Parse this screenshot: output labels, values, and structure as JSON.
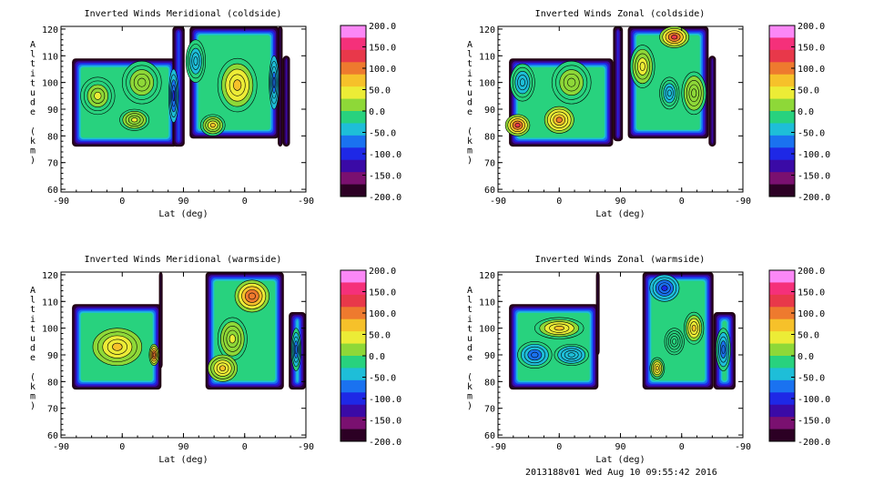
{
  "footer_text": "2013188v01 Wed Aug 10 09:55:42 2016",
  "colorbar": {
    "ticks": [
      "200.0",
      "150.0",
      "100.0",
      "50.0",
      "0.0",
      "-50.0",
      "-100.0",
      "-150.0",
      "-200.0"
    ],
    "colors": [
      "#fb88f6",
      "#f5307a",
      "#e8384a",
      "#ee7a2e",
      "#f6c12a",
      "#ecec36",
      "#8ed838",
      "#28d27e",
      "#1ebed8",
      "#1a72f0",
      "#1e28e6",
      "#3a0aa6",
      "#7a1070",
      "#2c0024"
    ]
  },
  "chart_data": [
    {
      "type": "heatmap",
      "title": "Inverted Winds Meridional (coldside)",
      "xlabel": "Lat (deg)",
      "ylabel": "Altitude (km)",
      "xticks": [
        "-90",
        "0",
        "90",
        "0",
        "-90"
      ],
      "yticks": [
        "60",
        "70",
        "80",
        "90",
        "100",
        "110",
        "120"
      ],
      "ylim": [
        59,
        121
      ],
      "zlim": [
        -200,
        200
      ],
      "blocks": [
        {
          "x0": 0.045,
          "x1": 0.475,
          "y0": 76,
          "y1": 109
        },
        {
          "x0": 0.455,
          "x1": 0.505,
          "y0": 76,
          "y1": 121
        },
        {
          "x0": 0.525,
          "x1": 0.89,
          "y0": 79,
          "y1": 121
        },
        {
          "x0": 0.885,
          "x1": 0.905,
          "y0": 76,
          "y1": 121
        },
        {
          "x0": 0.905,
          "x1": 0.935,
          "y0": 76,
          "y1": 110
        }
      ],
      "blobs": [
        {
          "x": 0.15,
          "y": 95,
          "sx": 0.07,
          "sy": 7,
          "v": 30
        },
        {
          "x": 0.33,
          "y": 100,
          "sx": 0.08,
          "sy": 8,
          "v": 25
        },
        {
          "x": 0.3,
          "y": 86,
          "sx": 0.06,
          "sy": 4,
          "v": 40
        },
        {
          "x": 0.72,
          "y": 99,
          "sx": 0.08,
          "sy": 10,
          "v": 70
        },
        {
          "x": 0.62,
          "y": 84,
          "sx": 0.05,
          "sy": 4,
          "v": 60
        },
        {
          "x": 0.55,
          "y": 108,
          "sx": 0.04,
          "sy": 8,
          "v": -40
        },
        {
          "x": 0.46,
          "y": 95,
          "sx": 0.02,
          "sy": 10,
          "v": -90
        },
        {
          "x": 0.87,
          "y": 100,
          "sx": 0.02,
          "sy": 10,
          "v": -80
        }
      ],
      "base_value": -20
    },
    {
      "type": "heatmap",
      "title": "Inverted Winds Zonal (coldside)",
      "xlabel": "Lat (deg)",
      "ylabel": "Altitude (km)",
      "xticks": [
        "-90",
        "0",
        "90",
        "0",
        "-90"
      ],
      "yticks": [
        "60",
        "70",
        "80",
        "90",
        "100",
        "110",
        "120"
      ],
      "ylim": [
        59,
        121
      ],
      "zlim": [
        -200,
        200
      ],
      "blocks": [
        {
          "x0": 0.045,
          "x1": 0.47,
          "y0": 76,
          "y1": 109
        },
        {
          "x0": 0.47,
          "x1": 0.51,
          "y0": 78,
          "y1": 121
        },
        {
          "x0": 0.53,
          "x1": 0.86,
          "y0": 79,
          "y1": 121
        },
        {
          "x0": 0.86,
          "x1": 0.89,
          "y0": 76,
          "y1": 110
        }
      ],
      "blobs": [
        {
          "x": 0.08,
          "y": 84,
          "sx": 0.05,
          "sy": 4,
          "v": 130
        },
        {
          "x": 0.25,
          "y": 86,
          "sx": 0.06,
          "sy": 5,
          "v": 100
        },
        {
          "x": 0.3,
          "y": 100,
          "sx": 0.08,
          "sy": 8,
          "v": 10
        },
        {
          "x": 0.1,
          "y": 100,
          "sx": 0.05,
          "sy": 7,
          "v": -50
        },
        {
          "x": 0.59,
          "y": 106,
          "sx": 0.05,
          "sy": 8,
          "v": 40
        },
        {
          "x": 0.72,
          "y": 117,
          "sx": 0.06,
          "sy": 4,
          "v": 130
        },
        {
          "x": 0.8,
          "y": 96,
          "sx": 0.05,
          "sy": 8,
          "v": 20
        },
        {
          "x": 0.7,
          "y": 96,
          "sx": 0.04,
          "sy": 6,
          "v": -50
        }
      ],
      "base_value": -10
    },
    {
      "type": "heatmap",
      "title": "Inverted Winds Meridional (warmside)",
      "xlabel": "Lat (deg)",
      "ylabel": "Altitude (km)",
      "xticks": [
        "-90",
        "0",
        "90",
        "0",
        "-90"
      ],
      "yticks": [
        "60",
        "70",
        "80",
        "90",
        "100",
        "110",
        "120"
      ],
      "ylim": [
        59,
        121
      ],
      "zlim": [
        -200,
        200
      ],
      "blocks": [
        {
          "x0": 0.045,
          "x1": 0.41,
          "y0": 77,
          "y1": 109
        },
        {
          "x0": 0.4,
          "x1": 0.415,
          "y0": 85,
          "y1": 121
        },
        {
          "x0": 0.59,
          "x1": 0.91,
          "y0": 77,
          "y1": 121
        },
        {
          "x0": 0.93,
          "x1": 1.0,
          "y0": 77,
          "y1": 106
        }
      ],
      "blobs": [
        {
          "x": 0.23,
          "y": 93,
          "sx": 0.1,
          "sy": 7,
          "v": 60
        },
        {
          "x": 0.38,
          "y": 90,
          "sx": 0.02,
          "sy": 4,
          "v": 110
        },
        {
          "x": 0.78,
          "y": 112,
          "sx": 0.07,
          "sy": 6,
          "v": 110
        },
        {
          "x": 0.7,
          "y": 96,
          "sx": 0.06,
          "sy": 8,
          "v": 30
        },
        {
          "x": 0.66,
          "y": 85,
          "sx": 0.06,
          "sy": 5,
          "v": 60
        },
        {
          "x": 0.96,
          "y": 92,
          "sx": 0.02,
          "sy": 8,
          "v": -80
        }
      ],
      "base_value": -10
    },
    {
      "type": "heatmap",
      "title": "Inverted Winds Zonal (warmside)",
      "xlabel": "Lat (deg)",
      "ylabel": "Altitude (km)",
      "xticks": [
        "-90",
        "0",
        "90",
        "0",
        "-90"
      ],
      "yticks": [
        "60",
        "70",
        "80",
        "90",
        "100",
        "110",
        "120"
      ],
      "ylim": [
        59,
        121
      ],
      "zlim": [
        -200,
        200
      ],
      "blocks": [
        {
          "x0": 0.045,
          "x1": 0.41,
          "y0": 77,
          "y1": 109
        },
        {
          "x0": 0.4,
          "x1": 0.415,
          "y0": 90,
          "y1": 121
        },
        {
          "x0": 0.59,
          "x1": 0.88,
          "y0": 77,
          "y1": 121
        },
        {
          "x0": 0.88,
          "x1": 0.97,
          "y0": 77,
          "y1": 106
        }
      ],
      "blobs": [
        {
          "x": 0.25,
          "y": 100,
          "sx": 0.1,
          "sy": 4,
          "v": 60
        },
        {
          "x": 0.15,
          "y": 90,
          "sx": 0.07,
          "sy": 5,
          "v": -70
        },
        {
          "x": 0.3,
          "y": 90,
          "sx": 0.07,
          "sy": 4,
          "v": -50
        },
        {
          "x": 0.68,
          "y": 115,
          "sx": 0.06,
          "sy": 5,
          "v": -90
        },
        {
          "x": 0.8,
          "y": 100,
          "sx": 0.04,
          "sy": 6,
          "v": 60
        },
        {
          "x": 0.65,
          "y": 85,
          "sx": 0.03,
          "sy": 4,
          "v": 60
        },
        {
          "x": 0.72,
          "y": 95,
          "sx": 0.04,
          "sy": 5,
          "v": -10
        },
        {
          "x": 0.92,
          "y": 92,
          "sx": 0.03,
          "sy": 8,
          "v": -80
        }
      ],
      "base_value": -15
    }
  ]
}
